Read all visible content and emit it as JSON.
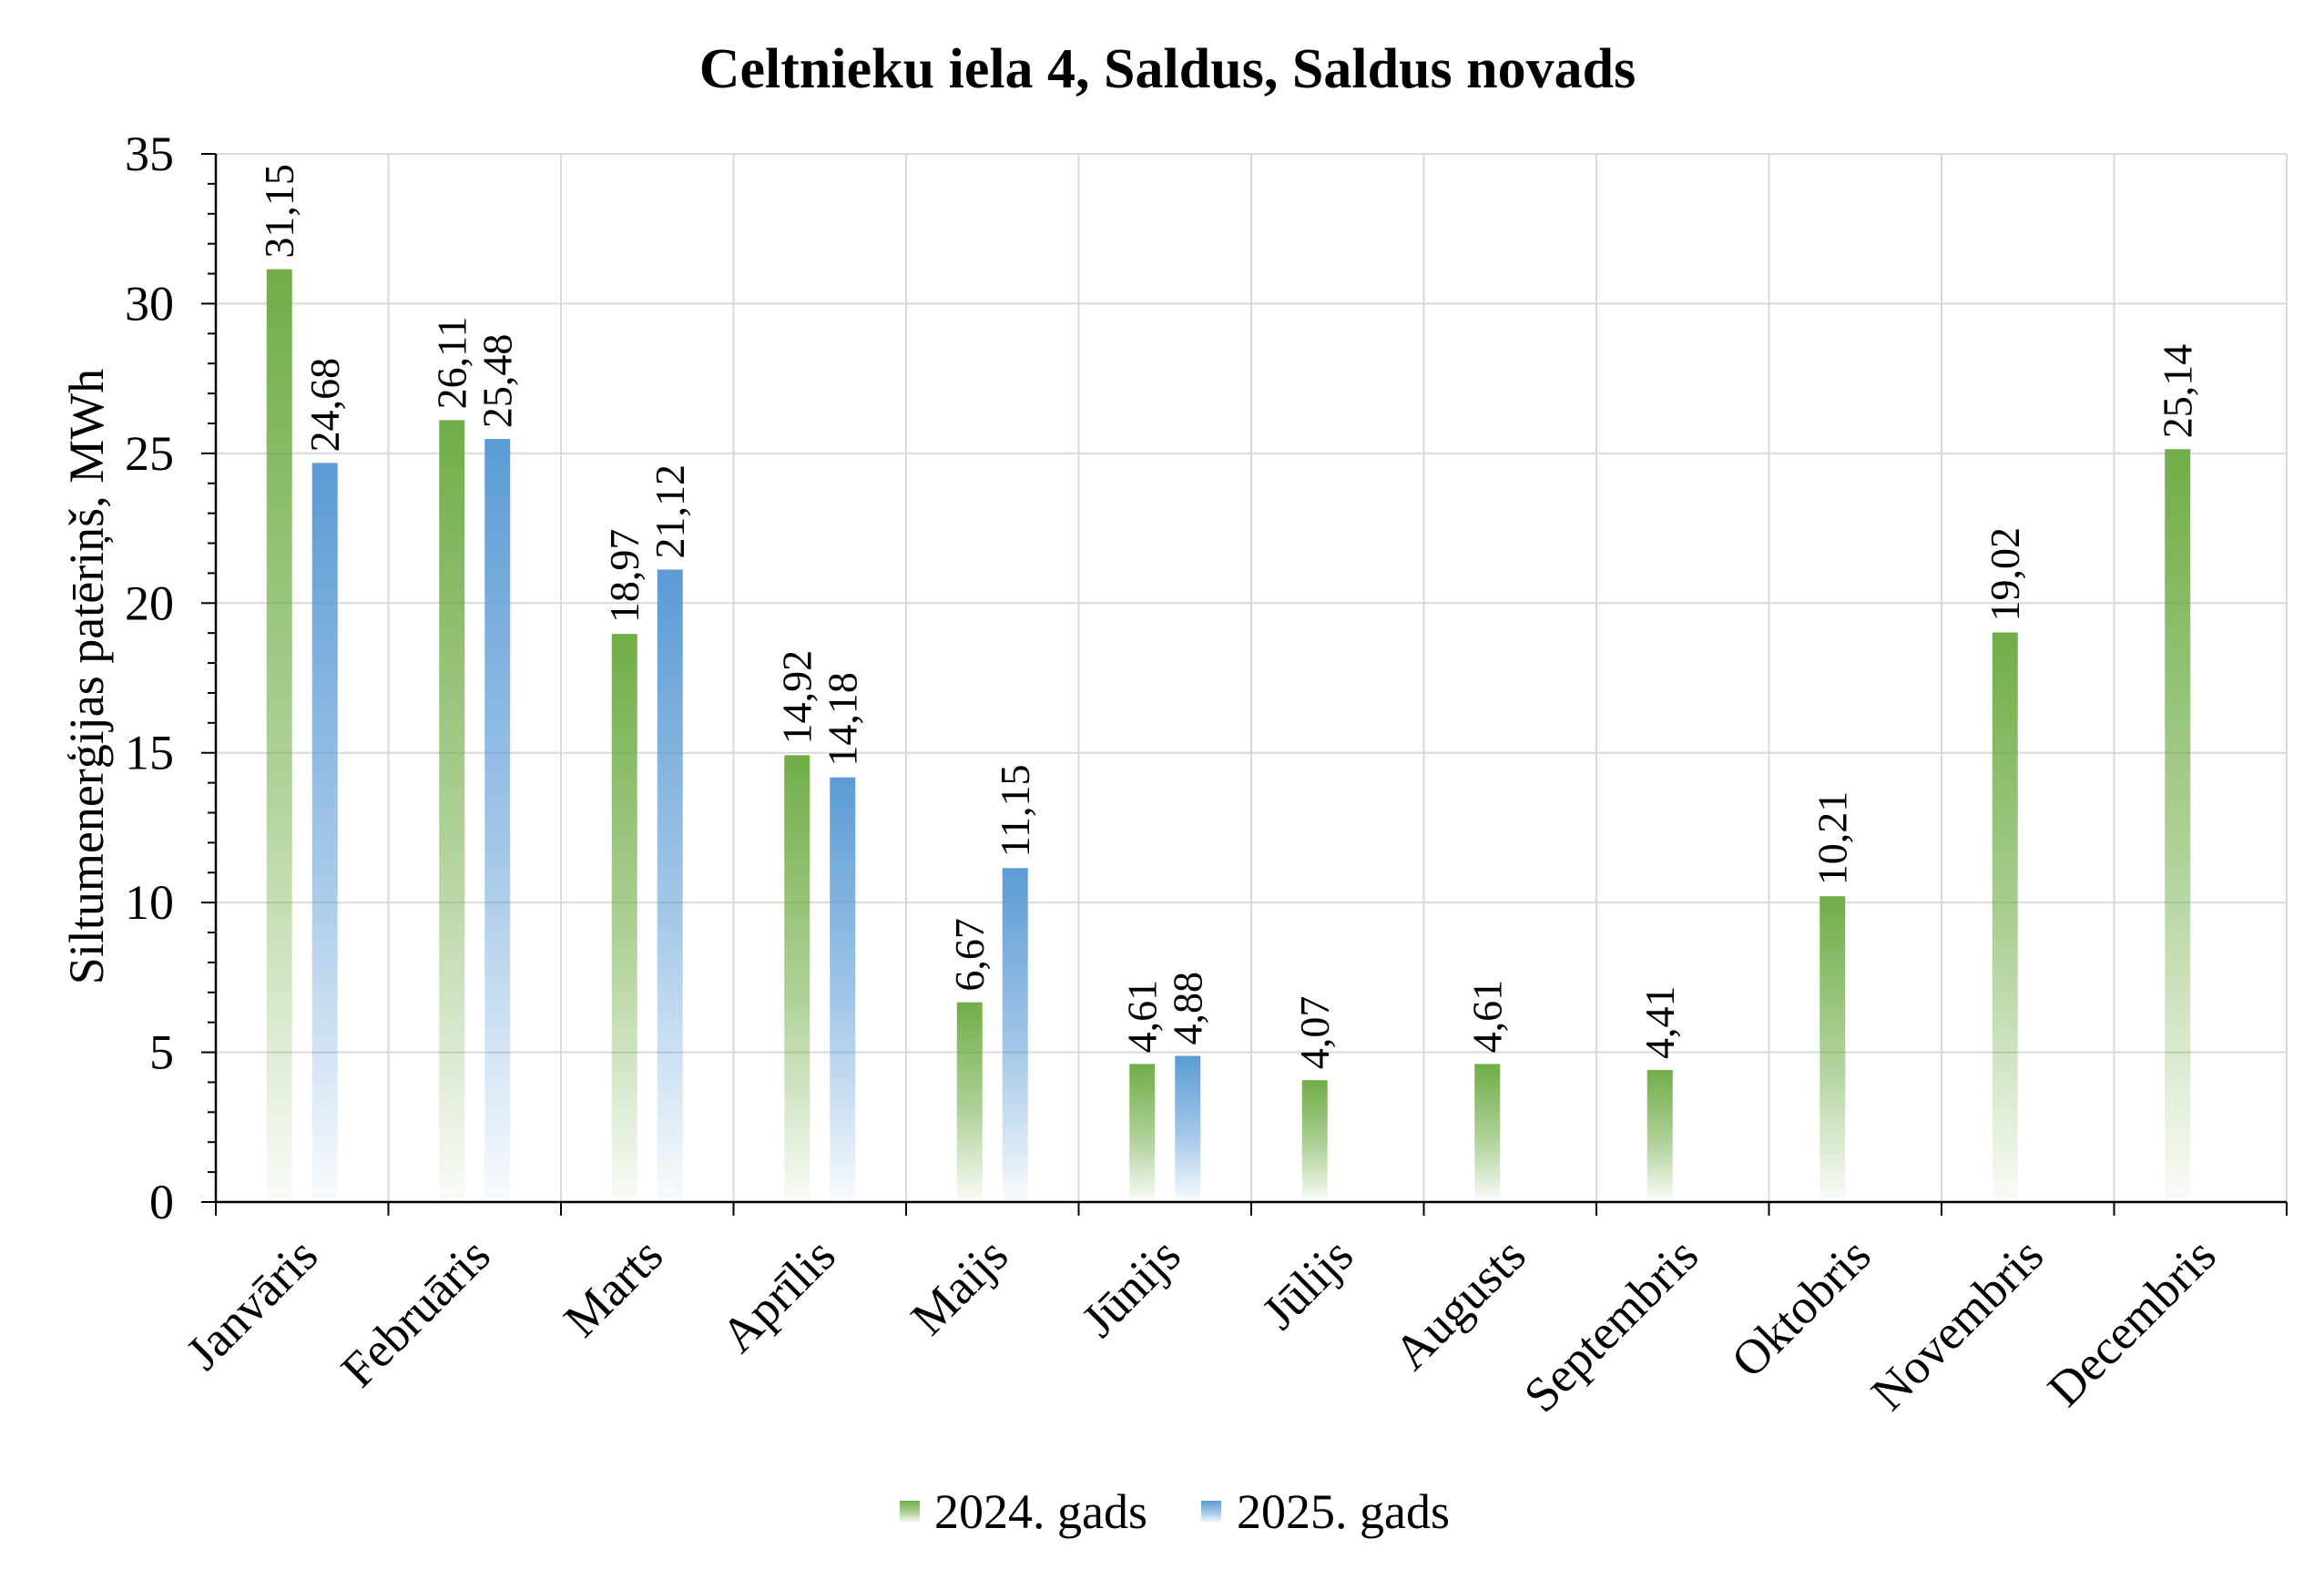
{
  "chart_data": {
    "type": "bar",
    "title": "Celtnieku iela 4, Saldus, Saldus novads",
    "ylabel": "Siltumenerģijas patēriņš, MWh",
    "ylim": [
      0,
      35
    ],
    "yticks": [
      0,
      5,
      10,
      15,
      20,
      25,
      30,
      35
    ],
    "grid": true,
    "legend": "bottom",
    "categories": [
      "Janvāris",
      "Februāris",
      "Marts",
      "Aprīlis",
      "Maijs",
      "Jūnijs",
      "Jūlijs",
      "Augusts",
      "Septembris",
      "Oktobris",
      "Novembris",
      "Decembris"
    ],
    "series": [
      {
        "name": "2024. gads",
        "color": "#70AD47",
        "values": [
          31.15,
          26.11,
          18.97,
          14.92,
          6.67,
          4.61,
          4.07,
          4.61,
          4.41,
          10.21,
          19.02,
          25.14
        ],
        "labels": [
          "31,15",
          "26,11",
          "18,97",
          "14,92",
          "6,67",
          "4,61",
          "4,07",
          "4,61",
          "4,41",
          "10,21",
          "19,02",
          "25,14"
        ]
      },
      {
        "name": "2025. gads",
        "color": "#5B9BD5",
        "values": [
          24.68,
          25.48,
          21.12,
          14.18,
          11.15,
          4.88,
          null,
          null,
          null,
          null,
          null,
          null
        ],
        "labels": [
          "24,68",
          "25,48",
          "21,12",
          "14,18",
          "11,15",
          "4,88",
          null,
          null,
          null,
          null,
          null,
          null
        ]
      }
    ]
  }
}
